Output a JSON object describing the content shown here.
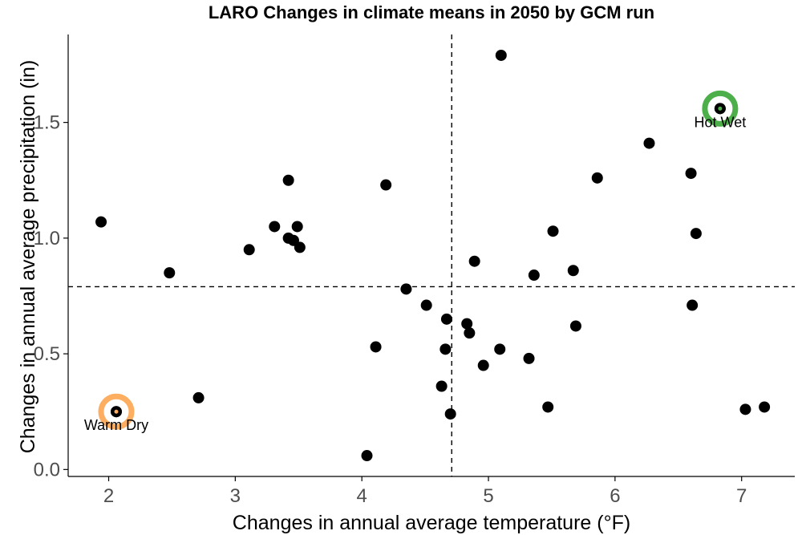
{
  "chart_data": {
    "type": "scatter",
    "title": "LARO Changes in climate means in 2050 by GCM run",
    "xlabel": "Changes in annual average temperature (°F)",
    "ylabel": "Changes in annual average precipitation (in)",
    "xlim": [
      1.68,
      7.42
    ],
    "ylim": [
      -0.03,
      1.88
    ],
    "xticks": [
      2,
      3,
      4,
      5,
      6,
      7
    ],
    "xtick_labels": [
      "2",
      "3",
      "4",
      "5",
      "6",
      "7"
    ],
    "yticks": [
      0.0,
      0.5,
      1.0,
      1.5
    ],
    "ytick_labels": [
      "0.0",
      "0.5",
      "1.0",
      "1.5"
    ],
    "grid": false,
    "reference_lines": {
      "x": 4.71,
      "y": 0.79
    },
    "points": [
      {
        "x": 1.94,
        "y": 1.07
      },
      {
        "x": 2.06,
        "y": 0.25
      },
      {
        "x": 2.48,
        "y": 0.85
      },
      {
        "x": 2.71,
        "y": 0.31
      },
      {
        "x": 3.11,
        "y": 0.95
      },
      {
        "x": 3.31,
        "y": 1.05
      },
      {
        "x": 3.42,
        "y": 1.25
      },
      {
        "x": 3.42,
        "y": 1.0
      },
      {
        "x": 3.46,
        "y": 0.99
      },
      {
        "x": 3.49,
        "y": 1.05
      },
      {
        "x": 3.51,
        "y": 0.96
      },
      {
        "x": 4.04,
        "y": 0.06
      },
      {
        "x": 4.11,
        "y": 0.53
      },
      {
        "x": 4.19,
        "y": 1.23
      },
      {
        "x": 4.35,
        "y": 0.78
      },
      {
        "x": 4.51,
        "y": 0.71
      },
      {
        "x": 4.63,
        "y": 0.36
      },
      {
        "x": 4.66,
        "y": 0.52
      },
      {
        "x": 4.67,
        "y": 0.65
      },
      {
        "x": 4.7,
        "y": 0.24
      },
      {
        "x": 4.83,
        "y": 0.63
      },
      {
        "x": 4.85,
        "y": 0.59
      },
      {
        "x": 4.89,
        "y": 0.9
      },
      {
        "x": 4.96,
        "y": 0.45
      },
      {
        "x": 5.09,
        "y": 0.52
      },
      {
        "x": 5.1,
        "y": 1.79
      },
      {
        "x": 5.32,
        "y": 0.48
      },
      {
        "x": 5.36,
        "y": 0.84
      },
      {
        "x": 5.47,
        "y": 0.27
      },
      {
        "x": 5.51,
        "y": 1.03
      },
      {
        "x": 5.67,
        "y": 0.86
      },
      {
        "x": 5.69,
        "y": 0.62
      },
      {
        "x": 5.86,
        "y": 1.26
      },
      {
        "x": 6.27,
        "y": 1.41
      },
      {
        "x": 6.6,
        "y": 1.28
      },
      {
        "x": 6.61,
        "y": 0.71
      },
      {
        "x": 6.64,
        "y": 1.02
      },
      {
        "x": 6.83,
        "y": 1.56
      },
      {
        "x": 7.03,
        "y": 0.26
      },
      {
        "x": 7.18,
        "y": 0.27
      }
    ],
    "highlights": [
      {
        "label": "Hot Wet",
        "x": 6.83,
        "y": 1.56,
        "ring_color": "#4daf4a",
        "center_color": "#4daf4a"
      },
      {
        "label": "Warm Dry",
        "x": 2.06,
        "y": 0.25,
        "ring_color": "#fdae61",
        "center_color": "#fdae61"
      }
    ],
    "point_color": "#000000"
  }
}
